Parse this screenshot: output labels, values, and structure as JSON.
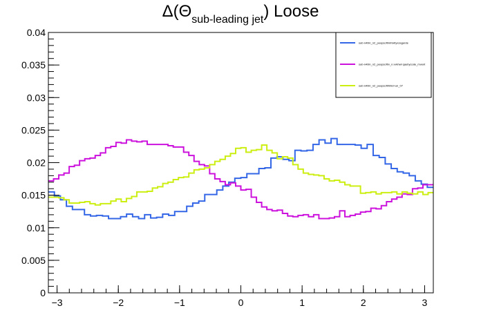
{
  "chart_data": {
    "type": "line",
    "step": true,
    "title": {
      "prefix": "Δ(Θ",
      "subscript": "sub-leading jet",
      "suffix": ") Loose"
    },
    "xlabel": "",
    "ylabel": "",
    "xlim": [
      -3.1416,
      3.1416
    ],
    "ylim": [
      0,
      0.04
    ],
    "x_ticks": [
      {
        "value": -3,
        "label": "−3"
      },
      {
        "value": -2,
        "label": "−2"
      },
      {
        "value": -1,
        "label": "−1"
      },
      {
        "value": 0,
        "label": "0"
      },
      {
        "value": 1,
        "label": "1"
      },
      {
        "value": 2,
        "label": "2"
      },
      {
        "value": 3,
        "label": "3"
      }
    ],
    "y_ticks": [
      {
        "value": 0,
        "label": "0"
      },
      {
        "value": 0.005,
        "label": "0.005"
      },
      {
        "value": 0.01,
        "label": "0.01"
      },
      {
        "value": 0.015,
        "label": "0.015"
      },
      {
        "value": 0.02,
        "label": "0.02"
      },
      {
        "value": 0.025,
        "label": "0.025"
      },
      {
        "value": 0.03,
        "label": "0.03"
      },
      {
        "value": 0.035,
        "label": "0.035"
      },
      {
        "value": 0.04,
        "label": "0.04"
      }
    ],
    "legend_position": "top-right",
    "series": [
      {
        "name": "sub-n40in_n2_peopsoft/mhixltyxzagerde",
        "color": "#3366e6",
        "values": [
          0.0155,
          0.0149,
          0.0143,
          0.0133,
          0.0128,
          0.0128,
          0.012,
          0.0118,
          0.0119,
          0.0118,
          0.0114,
          0.0114,
          0.0117,
          0.0121,
          0.0117,
          0.0114,
          0.012,
          0.0115,
          0.0116,
          0.0121,
          0.0119,
          0.0125,
          0.0125,
          0.0133,
          0.0138,
          0.0141,
          0.0151,
          0.0151,
          0.0158,
          0.0164,
          0.017,
          0.0176,
          0.0177,
          0.0183,
          0.0183,
          0.0191,
          0.0192,
          0.0207,
          0.0209,
          0.0205,
          0.0203,
          0.0219,
          0.0218,
          0.0219,
          0.0228,
          0.0235,
          0.023,
          0.0237,
          0.0228,
          0.0228,
          0.0228,
          0.0227,
          0.0222,
          0.0228,
          0.0211,
          0.0208,
          0.0198,
          0.0191,
          0.0186,
          0.0184,
          0.018,
          0.0172,
          0.0167,
          0.0162
        ]
      },
      {
        "name": "sub-n40in_n2_peopsoft/v_n.vvkhwl qaubycode_mvent",
        "color": "#cc11dd",
        "values": [
          0.0172,
          0.0175,
          0.0181,
          0.0184,
          0.0194,
          0.0196,
          0.0203,
          0.0206,
          0.0207,
          0.0211,
          0.0215,
          0.0223,
          0.0225,
          0.0231,
          0.023,
          0.0235,
          0.0233,
          0.0232,
          0.0233,
          0.0228,
          0.0228,
          0.0228,
          0.0228,
          0.0226,
          0.0224,
          0.0224,
          0.0216,
          0.0211,
          0.0202,
          0.0197,
          0.0195,
          0.0183,
          0.0175,
          0.0171,
          0.0166,
          0.0169,
          0.0164,
          0.0158,
          0.0159,
          0.0147,
          0.0139,
          0.0132,
          0.0128,
          0.0126,
          0.0127,
          0.0122,
          0.0118,
          0.0117,
          0.0119,
          0.012,
          0.0117,
          0.012,
          0.0114,
          0.0114,
          0.0115,
          0.0117,
          0.0126,
          0.0117,
          0.0119,
          0.0121,
          0.0124,
          0.0125,
          0.013,
          0.0129,
          0.0134,
          0.014,
          0.0144,
          0.0147,
          0.0152,
          0.0151,
          0.016,
          0.0161,
          0.0166,
          0.0166
        ]
      },
      {
        "name": "sub-n40in_n2_peopsoft/hhid+un_07",
        "color": "#ccee11",
        "values": [
          0.0147,
          0.0147,
          0.0146,
          0.0143,
          0.0138,
          0.0138,
          0.0139,
          0.014,
          0.0137,
          0.0135,
          0.0137,
          0.0137,
          0.0141,
          0.0144,
          0.014,
          0.0145,
          0.0148,
          0.0155,
          0.0155,
          0.0156,
          0.0161,
          0.0163,
          0.0168,
          0.017,
          0.0174,
          0.0177,
          0.0178,
          0.0184,
          0.0189,
          0.019,
          0.0192,
          0.0197,
          0.0202,
          0.0205,
          0.021,
          0.0214,
          0.0222,
          0.0223,
          0.0216,
          0.0219,
          0.022,
          0.0227,
          0.0219,
          0.0215,
          0.0206,
          0.0209,
          0.0207,
          0.0197,
          0.019,
          0.0184,
          0.0182,
          0.0181,
          0.018,
          0.0175,
          0.0172,
          0.0173,
          0.017,
          0.0166,
          0.0164,
          0.0164,
          0.0153,
          0.0154,
          0.0155,
          0.0152,
          0.0154,
          0.0154,
          0.0155,
          0.0152,
          0.0155,
          0.0153,
          0.0152,
          0.0155,
          0.0151,
          0.0154
        ]
      }
    ]
  }
}
